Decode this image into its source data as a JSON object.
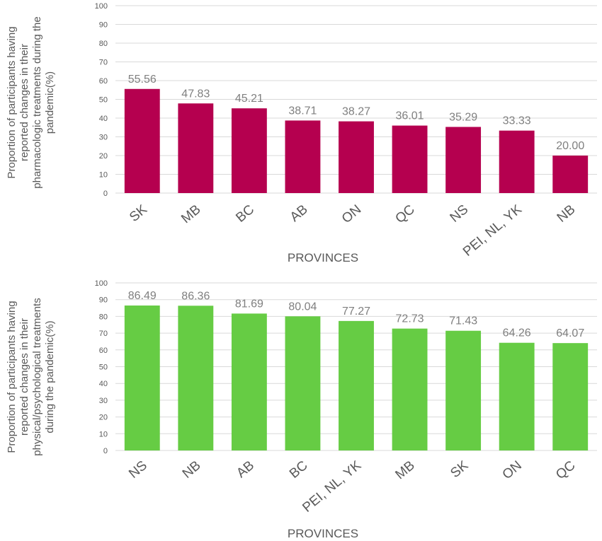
{
  "chart_data": [
    {
      "type": "bar",
      "categories": [
        "SK",
        "MB",
        "BC",
        "AB",
        "ON",
        "QC",
        "NS",
        "PEI, NL, YK",
        "NB"
      ],
      "values": [
        55.56,
        47.83,
        45.21,
        38.71,
        38.27,
        36.01,
        35.29,
        33.33,
        20.0
      ],
      "value_labels": [
        "55.56",
        "47.83",
        "45.21",
        "38.71",
        "38.27",
        "36.01",
        "35.29",
        "33.33",
        "20.00"
      ],
      "ylim": [
        0,
        100
      ],
      "yticks": [
        "0",
        "10",
        "20",
        "30",
        "40",
        "50",
        "60",
        "70",
        "80",
        "90",
        "100"
      ],
      "xlabel": "PROVINCES",
      "ylabel_lines": [
        "Proportion of participants having",
        "reported changes in their",
        "pharmacologic treatments during the",
        "pandemic(%)"
      ],
      "grid": true,
      "color": "#b5004f"
    },
    {
      "type": "bar",
      "categories": [
        "NS",
        "NB",
        "AB",
        "BC",
        "PEI, NL, YK",
        "MB",
        "SK",
        "ON",
        "QC"
      ],
      "values": [
        86.49,
        86.36,
        81.69,
        80.04,
        77.27,
        72.73,
        71.43,
        64.26,
        64.07
      ],
      "value_labels": [
        "86.49",
        "86.36",
        "81.69",
        "80.04",
        "77.27",
        "72.73",
        "71.43",
        "64.26",
        "64.07"
      ],
      "ylim": [
        0,
        100
      ],
      "yticks": [
        "0",
        "10",
        "20",
        "30",
        "40",
        "50",
        "60",
        "70",
        "80",
        "90",
        "100"
      ],
      "xlabel": "PROVINCES",
      "ylabel_lines": [
        "Proportion of participants having",
        "reported changes in their",
        "physical/psychological treatments",
        "during the pandemic(%)"
      ],
      "grid": true,
      "color": "#66cc44"
    }
  ]
}
